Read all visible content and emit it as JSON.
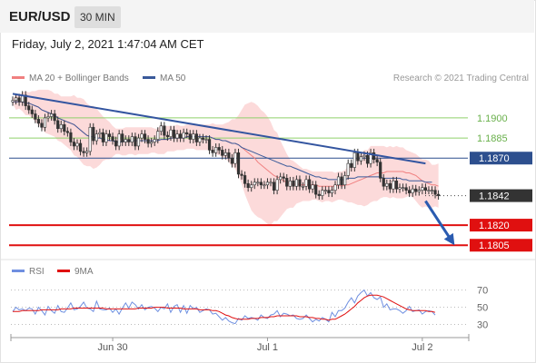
{
  "header": {
    "pair": "EUR/USD",
    "interval": "30 MIN",
    "datetime": "Friday, July 2, 2021 1:47:04 AM CET"
  },
  "legend": {
    "price": [
      {
        "label": "MA 20 + Bollinger Bands",
        "color": "#f08080"
      },
      {
        "label": "MA 50",
        "color": "#3a5a9a"
      }
    ],
    "rsi": [
      {
        "label": "RSI",
        "color": "#6f8fe0"
      },
      {
        "label": "9MA",
        "color": "#e01010"
      }
    ]
  },
  "credit": "Research © 2021 Trading Central",
  "colors": {
    "bull": "#ffffff",
    "bear": "#333333",
    "band": "#fbd4d4",
    "ma20": "#f08080",
    "ma50": "#3a5a9a",
    "trend": "#3355a0",
    "support": "#e01010",
    "resistance": "#8fd06a",
    "pivot": "#2d4f8e"
  },
  "chart_data": [
    {
      "type": "candlestick",
      "ylim": [
        1.1795,
        1.1925
      ],
      "levels": [
        {
          "value": 1.19,
          "label": "1.1900",
          "kind": "resistance"
        },
        {
          "value": 1.1885,
          "label": "1.1885",
          "kind": "resistance"
        },
        {
          "value": 1.187,
          "label": "1.1870",
          "kind": "pivot"
        },
        {
          "value": 1.1842,
          "label": "1.1842",
          "kind": "last"
        },
        {
          "value": 1.182,
          "label": "1.1820",
          "kind": "support"
        },
        {
          "value": 1.1805,
          "label": "1.1805",
          "kind": "support"
        }
      ],
      "x_ticks": [
        {
          "label": "Jun 30",
          "index": 31
        },
        {
          "label": "Jul 1",
          "index": 79
        },
        {
          "label": "Jul 2",
          "index": 127
        }
      ],
      "close": [
        1.1913,
        1.1915,
        1.1912,
        1.1917,
        1.1909,
        1.1906,
        1.1903,
        1.1899,
        1.1896,
        1.1893,
        1.19,
        1.1901,
        1.1903,
        1.1898,
        1.1892,
        1.1895,
        1.189,
        1.1889,
        1.1882,
        1.1879,
        1.1881,
        1.1875,
        1.1874,
        1.1875,
        1.1893,
        1.1883,
        1.1888,
        1.1889,
        1.1882,
        1.1888,
        1.1886,
        1.1883,
        1.1879,
        1.1888,
        1.1882,
        1.1884,
        1.1882,
        1.1886,
        1.1879,
        1.1885,
        1.1888,
        1.1884,
        1.1881,
        1.1882,
        1.1884,
        1.189,
        1.1894,
        1.1887,
        1.1886,
        1.1891,
        1.1885,
        1.1888,
        1.1885,
        1.1889,
        1.1888,
        1.1884,
        1.1888,
        1.1882,
        1.1885,
        1.1884,
        1.1884,
        1.1876,
        1.1874,
        1.1878,
        1.1876,
        1.1872,
        1.1874,
        1.187,
        1.1866,
        1.1874,
        1.1858,
        1.1857,
        1.1851,
        1.1848,
        1.185,
        1.1852,
        1.1852,
        1.185,
        1.185,
        1.1852,
        1.1852,
        1.1846,
        1.1854,
        1.1856,
        1.1855,
        1.1849,
        1.1853,
        1.1849,
        1.1854,
        1.1849,
        1.1849,
        1.1854,
        1.1847,
        1.185,
        1.1843,
        1.1842,
        1.1846,
        1.1846,
        1.1844,
        1.1846,
        1.185,
        1.1856,
        1.185,
        1.1857,
        1.1866,
        1.1863,
        1.1874,
        1.1868,
        1.1871,
        1.1872,
        1.1866,
        1.1874,
        1.1869,
        1.1867,
        1.1855,
        1.1849,
        1.1851,
        1.1847,
        1.1853,
        1.1847,
        1.1848,
        1.1848,
        1.1846,
        1.1844,
        1.1847,
        1.1845,
        1.1846,
        1.1848,
        1.1846,
        1.1846,
        1.1846,
        1.1843,
        1.1842
      ],
      "open": [
        1.1912,
        1.1913,
        1.1915,
        1.1912,
        1.1917,
        1.1909,
        1.1906,
        1.1903,
        1.1899,
        1.1896,
        1.1893,
        1.19,
        1.1901,
        1.1903,
        1.1898,
        1.1892,
        1.1895,
        1.189,
        1.1889,
        1.1882,
        1.1879,
        1.1881,
        1.1875,
        1.1874,
        1.1875,
        1.1893,
        1.1883,
        1.1888,
        1.1889,
        1.1882,
        1.1888,
        1.1886,
        1.1883,
        1.1879,
        1.1888,
        1.1882,
        1.1884,
        1.1882,
        1.1886,
        1.1879,
        1.1885,
        1.1888,
        1.1884,
        1.1881,
        1.1882,
        1.1884,
        1.189,
        1.1894,
        1.1887,
        1.1886,
        1.1891,
        1.1885,
        1.1888,
        1.1885,
        1.1889,
        1.1888,
        1.1884,
        1.1888,
        1.1882,
        1.1885,
        1.1884,
        1.1884,
        1.1876,
        1.1874,
        1.1878,
        1.1876,
        1.1872,
        1.1874,
        1.187,
        1.1866,
        1.1874,
        1.1858,
        1.1857,
        1.1851,
        1.1848,
        1.185,
        1.1852,
        1.1852,
        1.185,
        1.185,
        1.1852,
        1.1852,
        1.1846,
        1.1854,
        1.1856,
        1.1855,
        1.1849,
        1.1853,
        1.1849,
        1.1854,
        1.1849,
        1.1849,
        1.1854,
        1.1847,
        1.185,
        1.1843,
        1.1842,
        1.1846,
        1.1846,
        1.1844,
        1.1846,
        1.185,
        1.1856,
        1.185,
        1.1857,
        1.1866,
        1.1863,
        1.1874,
        1.1868,
        1.1871,
        1.1872,
        1.1866,
        1.1874,
        1.1869,
        1.1867,
        1.1855,
        1.1849,
        1.1851,
        1.1847,
        1.1853,
        1.1847,
        1.1848,
        1.1848,
        1.1846,
        1.1844,
        1.1847,
        1.1845,
        1.1846,
        1.1848,
        1.1846,
        1.1846,
        1.1846,
        1.1843
      ],
      "ma20": [
        1.1912,
        1.1912,
        1.1912,
        1.1912,
        1.1911,
        1.1911,
        1.191,
        1.1909,
        1.1908,
        1.1906,
        1.1905,
        1.1904,
        1.1903,
        1.1902,
        1.19,
        1.1899,
        1.1898,
        1.1897,
        1.1896,
        1.1895,
        1.1893,
        1.1891,
        1.1889,
        1.1887,
        1.1886,
        1.1886,
        1.1885,
        1.1885,
        1.1884,
        1.1884,
        1.1883,
        1.1883,
        1.1882,
        1.1882,
        1.1882,
        1.1883,
        1.1883,
        1.1883,
        1.1883,
        1.1883,
        1.1883,
        1.1883,
        1.1883,
        1.1883,
        1.1883,
        1.1883,
        1.1884,
        1.1884,
        1.1884,
        1.1885,
        1.1885,
        1.1885,
        1.1885,
        1.1885,
        1.1886,
        1.1886,
        1.1886,
        1.1886,
        1.1886,
        1.1886,
        1.1886,
        1.1886,
        1.1885,
        1.1884,
        1.1884,
        1.1883,
        1.1883,
        1.1882,
        1.1881,
        1.1881,
        1.188,
        1.1878,
        1.1876,
        1.1874,
        1.1872,
        1.187,
        1.1867,
        1.1865,
        1.1863,
        1.1861,
        1.1859,
        1.1857,
        1.1856,
        1.1855,
        1.1853,
        1.1852,
        1.1851,
        1.185,
        1.1851,
        1.185,
        1.185,
        1.185,
        1.185,
        1.185,
        1.185,
        1.1849,
        1.1849,
        1.1849,
        1.1849,
        1.1849,
        1.1849,
        1.185,
        1.1849,
        1.185,
        1.185,
        1.1851,
        1.1852,
        1.1853,
        1.1854,
        1.1855,
        1.1856,
        1.1857,
        1.1858,
        1.1859,
        1.1859,
        1.1859,
        1.186,
        1.186,
        1.186,
        1.186,
        1.186,
        1.186,
        1.1859,
        1.1859,
        1.1858,
        1.1857,
        1.1855,
        1.1853,
        1.1852,
        1.1851,
        1.185,
        1.185,
        1.1849
      ],
      "band_upper": [
        1.1914,
        1.1918,
        1.1917,
        1.1919,
        1.192,
        1.1919,
        1.192,
        1.192,
        1.1921,
        1.1921,
        1.1921,
        1.1921,
        1.192,
        1.1918,
        1.1918,
        1.1916,
        1.1916,
        1.1916,
        1.1916,
        1.1917,
        1.1915,
        1.1915,
        1.1914,
        1.1911,
        1.1909,
        1.1909,
        1.1907,
        1.1904,
        1.1901,
        1.1899,
        1.1897,
        1.1894,
        1.1892,
        1.1892,
        1.1892,
        1.1893,
        1.1893,
        1.1893,
        1.1893,
        1.1893,
        1.1893,
        1.1893,
        1.1893,
        1.1893,
        1.1892,
        1.1892,
        1.1895,
        1.1894,
        1.1894,
        1.1894,
        1.1894,
        1.1895,
        1.1894,
        1.1894,
        1.1895,
        1.1895,
        1.1895,
        1.1895,
        1.1895,
        1.1895,
        1.1895,
        1.1895,
        1.1896,
        1.1895,
        1.1895,
        1.1895,
        1.1896,
        1.1897,
        1.1899,
        1.1899,
        1.1902,
        1.1906,
        1.191,
        1.1911,
        1.1912,
        1.1911,
        1.1909,
        1.1906,
        1.1904,
        1.1901,
        1.1897,
        1.1891,
        1.1889,
        1.1883,
        1.1878,
        1.1873,
        1.1869,
        1.1868,
        1.1866,
        1.1864,
        1.1862,
        1.1862,
        1.1861,
        1.186,
        1.186,
        1.186,
        1.186,
        1.186,
        1.186,
        1.186,
        1.1859,
        1.186,
        1.186,
        1.1861,
        1.1864,
        1.1864,
        1.1869,
        1.1871,
        1.1873,
        1.1876,
        1.1876,
        1.1879,
        1.1879,
        1.1879,
        1.1879,
        1.1879,
        1.1878,
        1.1879,
        1.1878,
        1.1879,
        1.1878,
        1.1878,
        1.1876,
        1.1875,
        1.1874,
        1.1873,
        1.1871,
        1.1869,
        1.1869,
        1.1868,
        1.1865,
        1.1865,
        1.1866
      ],
      "band_lower": [
        1.1911,
        1.1906,
        1.1907,
        1.1905,
        1.1902,
        1.1902,
        1.19,
        1.1897,
        1.1895,
        1.1892,
        1.1889,
        1.1888,
        1.1887,
        1.1886,
        1.1883,
        1.1882,
        1.188,
        1.1878,
        1.1876,
        1.1872,
        1.1871,
        1.1868,
        1.1865,
        1.1864,
        1.1864,
        1.1862,
        1.1863,
        1.1865,
        1.1868,
        1.1869,
        1.1869,
        1.1871,
        1.1873,
        1.1873,
        1.1872,
        1.1872,
        1.1873,
        1.1873,
        1.1872,
        1.1873,
        1.1873,
        1.1873,
        1.1873,
        1.1874,
        1.1874,
        1.1873,
        1.1873,
        1.1873,
        1.1875,
        1.1875,
        1.1875,
        1.1876,
        1.1876,
        1.1876,
        1.1877,
        1.1877,
        1.1877,
        1.1876,
        1.1876,
        1.1876,
        1.1876,
        1.1876,
        1.1875,
        1.1873,
        1.1872,
        1.1871,
        1.187,
        1.1867,
        1.1864,
        1.1862,
        1.1857,
        1.1851,
        1.1843,
        1.1837,
        1.1831,
        1.1828,
        1.1826,
        1.1825,
        1.1823,
        1.1821,
        1.182,
        1.1823,
        1.1823,
        1.1826,
        1.1829,
        1.1832,
        1.1833,
        1.1833,
        1.1836,
        1.1837,
        1.1838,
        1.1838,
        1.1838,
        1.1839,
        1.1839,
        1.1838,
        1.1837,
        1.1838,
        1.1838,
        1.1837,
        1.1838,
        1.1839,
        1.1839,
        1.1838,
        1.1837,
        1.1837,
        1.1836,
        1.1835,
        1.1835,
        1.1834,
        1.1835,
        1.1837,
        1.1838,
        1.1838,
        1.184,
        1.1841,
        1.1841,
        1.184,
        1.1841,
        1.184,
        1.184,
        1.184,
        1.1841,
        1.1842,
        1.1841,
        1.1838,
        1.1835,
        1.1833,
        1.1834,
        1.1833,
        1.1833,
        1.1834,
        1.1833
      ],
      "ma50": [
        1.1912,
        1.1912,
        1.1912,
        1.1912,
        1.1911,
        1.1911,
        1.191,
        1.1909,
        1.1908,
        1.1906,
        1.1905,
        1.1904,
        1.1903,
        1.1902,
        1.19,
        1.1899,
        1.1898,
        1.1897,
        1.1896,
        1.1895,
        1.1893,
        1.1891,
        1.1889,
        1.1887,
        1.1886,
        1.1886,
        1.1885,
        1.1885,
        1.1884,
        1.1884,
        1.1883,
        1.1883,
        1.1882,
        1.1882,
        1.1882,
        1.1883,
        1.1883,
        1.1883,
        1.1883,
        1.1883,
        1.1883,
        1.1883,
        1.1883,
        1.1883,
        1.1883,
        1.1883,
        1.1884,
        1.1884,
        1.1884,
        1.1885,
        1.1885,
        1.1885,
        1.1885,
        1.1885,
        1.1886,
        1.1886,
        1.1886,
        1.1886,
        1.1886,
        1.1886,
        1.1886,
        1.1886,
        1.1885,
        1.1884,
        1.1884,
        1.1883,
        1.1883,
        1.1882,
        1.1881,
        1.1881,
        1.188,
        1.1878,
        1.1877,
        1.1876,
        1.1875,
        1.1874,
        1.1873,
        1.1872,
        1.1871,
        1.187,
        1.1869,
        1.1868,
        1.1867,
        1.1866,
        1.1865,
        1.1864,
        1.1864,
        1.1863,
        1.1862,
        1.1861,
        1.186,
        1.1859,
        1.1858,
        1.1857,
        1.1856,
        1.1856,
        1.1855,
        1.1855,
        1.1854,
        1.1854,
        1.1854,
        1.1854,
        1.1854,
        1.1854,
        1.1855,
        1.1855,
        1.1855,
        1.1856,
        1.1856,
        1.1856,
        1.1856,
        1.1856,
        1.1856,
        1.1856,
        1.1856,
        1.1855,
        1.1855,
        1.1855,
        1.1855,
        1.1855,
        1.1855,
        1.1854,
        1.1854,
        1.1853,
        1.1853,
        1.1853,
        1.1853,
        1.1853,
        1.1852,
        1.1852,
        1.1852
      ],
      "trendline": [
        [
          0,
          1.1918
        ],
        [
          128,
          1.1866
        ]
      ],
      "forecast": [
        [
          128,
          1.1838
        ],
        [
          137,
          1.1805
        ]
      ]
    },
    {
      "type": "line",
      "title": "RSI",
      "y_ticks": [
        70,
        50,
        30
      ],
      "ylim": [
        20,
        78
      ],
      "rsi": [
        45,
        50,
        47,
        48,
        46,
        49,
        48,
        42,
        50,
        46,
        41,
        51,
        46,
        43,
        52,
        45,
        44,
        49,
        55,
        47,
        48,
        51,
        56,
        49,
        48,
        45,
        57,
        48,
        47,
        47,
        49,
        44,
        48,
        42,
        49,
        55,
        49,
        56,
        53,
        48,
        53,
        47,
        50,
        51,
        49,
        45,
        50,
        48,
        54,
        44,
        51,
        53,
        44,
        52,
        43,
        52,
        48,
        50,
        44,
        46,
        48,
        47,
        42,
        43,
        39,
        35,
        38,
        34,
        32,
        31,
        37,
        35,
        40,
        37,
        38,
        37,
        35,
        41,
        38,
        37,
        41,
        42,
        46,
        39,
        43,
        42,
        40,
        41,
        37,
        36,
        37,
        41,
        37,
        33,
        36,
        34,
        38,
        36,
        33,
        44,
        39,
        46,
        46,
        49,
        56,
        61,
        55,
        63,
        67,
        70,
        63,
        67,
        61,
        59,
        62,
        50,
        54,
        47,
        48,
        48,
        46,
        43,
        46,
        51,
        45,
        46,
        47,
        42,
        45,
        46,
        45,
        41
      ],
      "ma9": [
        45,
        45,
        45,
        46,
        46,
        46,
        46,
        46,
        46,
        47,
        47,
        47,
        47,
        47,
        47,
        48,
        48,
        48,
        48,
        49,
        49,
        49,
        49,
        49,
        49,
        49,
        49,
        49,
        49,
        48,
        48,
        48,
        48,
        48,
        48,
        48,
        48,
        48,
        48,
        49,
        49,
        49,
        49,
        49,
        50,
        50,
        50,
        50,
        49,
        49,
        49,
        49,
        49,
        48,
        48,
        48,
        48,
        48,
        47,
        47,
        47,
        47,
        46,
        46,
        45,
        43,
        41,
        40,
        38,
        37,
        36,
        36,
        36,
        36,
        37,
        37,
        37,
        38,
        38,
        38,
        39,
        39,
        40,
        40,
        40,
        40,
        40,
        40,
        40,
        39,
        39,
        39,
        38,
        38,
        37,
        37,
        36,
        36,
        35,
        36,
        36,
        38,
        40,
        42,
        45,
        48,
        51,
        55,
        58,
        61,
        63,
        64,
        64,
        64,
        63,
        62,
        60,
        58,
        56,
        54,
        52,
        50,
        48,
        47,
        46,
        46,
        46,
        46,
        46,
        45,
        45,
        44
      ]
    }
  ]
}
